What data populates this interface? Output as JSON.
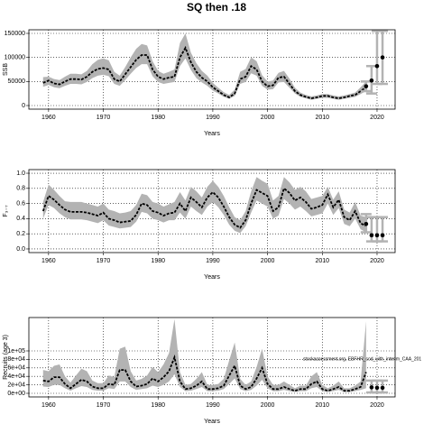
{
  "title": "SQ then .18",
  "chart_data": [
    {
      "type": "band-line",
      "ylabel": "SSB",
      "xlabel": "Years",
      "color": "#000000",
      "band_color": "#b3b3b3",
      "grid": true,
      "x": [
        1959,
        1960,
        1961,
        1962,
        1963,
        1964,
        1965,
        1966,
        1967,
        1968,
        1969,
        1970,
        1971,
        1972,
        1973,
        1974,
        1975,
        1976,
        1977,
        1978,
        1979,
        1980,
        1981,
        1982,
        1983,
        1984,
        1985,
        1986,
        1987,
        1988,
        1989,
        1990,
        1991,
        1992,
        1993,
        1994,
        1995,
        1996,
        1997,
        1998,
        1999,
        2000,
        2001,
        2002,
        2003,
        2004,
        2005,
        2006,
        2007,
        2008,
        2009,
        2010,
        2011,
        2012,
        2013,
        2014,
        2015,
        2016,
        2017,
        2018
      ],
      "values": [
        47000,
        52000,
        46000,
        44000,
        50000,
        55000,
        55000,
        54000,
        60000,
        70000,
        76000,
        78000,
        75000,
        55000,
        50000,
        65000,
        80000,
        95000,
        105000,
        105000,
        75000,
        60000,
        55000,
        58000,
        60000,
        100000,
        120000,
        90000,
        70000,
        58000,
        50000,
        38000,
        30000,
        22000,
        17000,
        25000,
        55000,
        60000,
        82000,
        75000,
        50000,
        40000,
        42000,
        58000,
        60000,
        45000,
        30000,
        22000,
        18000,
        15000,
        17000,
        20000,
        20000,
        17000,
        15000,
        17000,
        20000,
        22000,
        30000,
        38000
      ],
      "upper": [
        59000,
        60000,
        55000,
        53000,
        60000,
        66000,
        66000,
        65000,
        72000,
        86000,
        95000,
        98000,
        94000,
        70000,
        62000,
        80000,
        100000,
        118000,
        128000,
        125000,
        92000,
        72000,
        66000,
        70000,
        75000,
        130000,
        150000,
        110000,
        88000,
        72000,
        62000,
        47000,
        37000,
        28000,
        22000,
        33000,
        70000,
        76000,
        100000,
        92000,
        63000,
        50000,
        52000,
        68000,
        72000,
        56000,
        37000,
        27000,
        22000,
        19000,
        21000,
        24000,
        24000,
        21000,
        19000,
        21000,
        24000,
        27000,
        38000,
        50000
      ],
      "lower": [
        39000,
        43000,
        38000,
        36000,
        41000,
        45000,
        45000,
        44000,
        49000,
        57000,
        62000,
        64000,
        61000,
        45000,
        41000,
        53000,
        66000,
        78000,
        86000,
        86000,
        61000,
        49000,
        45000,
        47000,
        49000,
        82000,
        98000,
        74000,
        57000,
        48000,
        41000,
        31000,
        25000,
        18000,
        14000,
        20000,
        45000,
        49000,
        67000,
        62000,
        41000,
        33000,
        34000,
        48000,
        49000,
        37000,
        25000,
        18000,
        15000,
        12000,
        14000,
        16000,
        16000,
        14000,
        12000,
        14000,
        16000,
        18000,
        24000,
        30000
      ],
      "projection": {
        "x": [
          2018,
          2019,
          2020,
          2021
        ],
        "values": [
          40000,
          52000,
          82000,
          100000
        ],
        "lower": [
          30000,
          25000,
          45000,
          45000
        ],
        "upper": [
          50000,
          82000,
          155000,
          155000
        ]
      },
      "xlim": [
        1956.4,
        2023.3
      ],
      "xticks": [
        1960,
        1970,
        1980,
        1990,
        2000,
        2010,
        2020
      ],
      "ylim": [
        -7500,
        157500
      ],
      "yticks": [
        0,
        50000,
        100000,
        150000
      ]
    },
    {
      "type": "band-line",
      "ylabel": "F₃₋₇",
      "xlabel": "Years",
      "color": "#000000",
      "band_color": "#b3b3b3",
      "grid": true,
      "x": [
        1959,
        1960,
        1961,
        1962,
        1963,
        1964,
        1965,
        1966,
        1967,
        1968,
        1969,
        1970,
        1971,
        1972,
        1973,
        1974,
        1975,
        1976,
        1977,
        1978,
        1979,
        1980,
        1981,
        1982,
        1983,
        1984,
        1985,
        1986,
        1987,
        1988,
        1989,
        1990,
        1991,
        1992,
        1993,
        1994,
        1995,
        1996,
        1997,
        1998,
        1999,
        2000,
        2001,
        2002,
        2003,
        2004,
        2005,
        2006,
        2007,
        2008,
        2009,
        2010,
        2011,
        2012,
        2013,
        2014,
        2015,
        2016,
        2017,
        2018
      ],
      "values": [
        0.5,
        0.7,
        0.65,
        0.58,
        0.52,
        0.49,
        0.49,
        0.49,
        0.48,
        0.46,
        0.44,
        0.48,
        0.4,
        0.38,
        0.35,
        0.36,
        0.37,
        0.45,
        0.6,
        0.58,
        0.5,
        0.48,
        0.44,
        0.47,
        0.48,
        0.6,
        0.5,
        0.68,
        0.62,
        0.55,
        0.68,
        0.75,
        0.68,
        0.56,
        0.42,
        0.32,
        0.28,
        0.38,
        0.6,
        0.78,
        0.74,
        0.7,
        0.5,
        0.55,
        0.8,
        0.74,
        0.64,
        0.68,
        0.62,
        0.53,
        0.55,
        0.58,
        0.72,
        0.55,
        0.65,
        0.42,
        0.38,
        0.5,
        0.34,
        0.3
      ],
      "upper": [
        0.62,
        0.85,
        0.78,
        0.7,
        0.63,
        0.62,
        0.62,
        0.62,
        0.6,
        0.58,
        0.56,
        0.6,
        0.52,
        0.5,
        0.47,
        0.48,
        0.5,
        0.58,
        0.73,
        0.71,
        0.62,
        0.6,
        0.56,
        0.59,
        0.62,
        0.75,
        0.64,
        0.82,
        0.76,
        0.68,
        0.82,
        0.9,
        0.82,
        0.7,
        0.55,
        0.42,
        0.38,
        0.5,
        0.76,
        0.95,
        0.9,
        0.86,
        0.64,
        0.7,
        0.95,
        0.88,
        0.78,
        0.82,
        0.76,
        0.66,
        0.68,
        0.7,
        0.82,
        0.65,
        0.76,
        0.52,
        0.48,
        0.62,
        0.44,
        0.42
      ],
      "lower": [
        0.4,
        0.58,
        0.54,
        0.47,
        0.42,
        0.39,
        0.39,
        0.39,
        0.38,
        0.36,
        0.34,
        0.38,
        0.31,
        0.29,
        0.27,
        0.28,
        0.29,
        0.36,
        0.49,
        0.47,
        0.4,
        0.38,
        0.35,
        0.38,
        0.38,
        0.48,
        0.4,
        0.56,
        0.5,
        0.45,
        0.56,
        0.62,
        0.55,
        0.45,
        0.32,
        0.24,
        0.21,
        0.3,
        0.48,
        0.64,
        0.6,
        0.56,
        0.4,
        0.44,
        0.66,
        0.6,
        0.52,
        0.56,
        0.5,
        0.43,
        0.45,
        0.47,
        0.6,
        0.45,
        0.54,
        0.33,
        0.3,
        0.4,
        0.26,
        0.22
      ],
      "projection": {
        "x": [
          2018,
          2019,
          2020,
          2021
        ],
        "values": [
          0.33,
          0.18,
          0.18,
          0.18
        ],
        "lower": [
          0.22,
          0.1,
          0.1,
          0.1
        ],
        "upper": [
          0.46,
          0.42,
          0.42,
          0.42
        ]
      },
      "xlim": [
        1956.4,
        2023.3
      ],
      "xticks": [
        1960,
        1970,
        1980,
        1990,
        2000,
        2010,
        2020
      ],
      "ylim": [
        -0.048,
        1.048
      ],
      "yticks": [
        {
          "value": 0,
          "label": "0.0"
        },
        0.2,
        0.4,
        0.6,
        0.8,
        {
          "value": 1,
          "label": "1.0"
        }
      ]
    },
    {
      "type": "band-line",
      "ylabel": "Recruits (age 3)",
      "xlabel": "Years",
      "color": "#000000",
      "band_color": "#b3b3b3",
      "grid": true,
      "annotation": "stockassessment.org, EBFHR_cod_with_interim_CAA_201",
      "x": [
        1959,
        1960,
        1961,
        1962,
        1963,
        1964,
        1965,
        1966,
        1967,
        1968,
        1969,
        1970,
        1971,
        1972,
        1973,
        1974,
        1975,
        1976,
        1977,
        1978,
        1979,
        1980,
        1981,
        1982,
        1983,
        1984,
        1985,
        1986,
        1987,
        1988,
        1989,
        1990,
        1991,
        1992,
        1993,
        1994,
        1995,
        1996,
        1997,
        1998,
        1999,
        2000,
        2001,
        2002,
        2003,
        2004,
        2005,
        2006,
        2007,
        2008,
        2009,
        2010,
        2011,
        2012,
        2013,
        2014,
        2015,
        2016,
        2017,
        2018
      ],
      "values": [
        30000,
        28000,
        38000,
        38000,
        22000,
        12000,
        22000,
        32000,
        28000,
        16000,
        12000,
        12000,
        22000,
        20000,
        55000,
        55000,
        28000,
        16000,
        18000,
        22000,
        35000,
        28000,
        38000,
        52000,
        85000,
        28000,
        10000,
        12000,
        18000,
        28000,
        10000,
        10000,
        12000,
        18000,
        42000,
        65000,
        18000,
        10000,
        15000,
        35000,
        60000,
        22000,
        10000,
        10000,
        15000,
        10000,
        6000,
        10000,
        10000,
        22000,
        28000,
        10000,
        6000,
        10000,
        15000,
        6000,
        6000,
        10000,
        15000,
        50000
      ],
      "upper": [
        55000,
        52000,
        65000,
        68000,
        40000,
        25000,
        42000,
        58000,
        52000,
        30000,
        24000,
        24000,
        42000,
        38000,
        105000,
        110000,
        52000,
        30000,
        34000,
        42000,
        62000,
        50000,
        68000,
        95000,
        175000,
        50000,
        20000,
        22000,
        34000,
        50000,
        20000,
        20000,
        22000,
        34000,
        78000,
        120000,
        34000,
        20000,
        28000,
        62000,
        105000,
        40000,
        20000,
        20000,
        28000,
        20000,
        12000,
        18000,
        18000,
        40000,
        50000,
        20000,
        12000,
        18000,
        28000,
        12000,
        12000,
        18000,
        28000,
        170000
      ],
      "lower": [
        16000,
        15000,
        20000,
        20000,
        12000,
        6000,
        12000,
        17000,
        15000,
        8000,
        6000,
        6000,
        12000,
        10000,
        28000,
        28000,
        15000,
        8000,
        10000,
        12000,
        18000,
        15000,
        20000,
        28000,
        45000,
        15000,
        5000,
        6000,
        10000,
        15000,
        5000,
        5000,
        6000,
        10000,
        22000,
        35000,
        10000,
        5000,
        8000,
        18000,
        32000,
        12000,
        5000,
        5000,
        8000,
        5000,
        3000,
        5000,
        5000,
        12000,
        15000,
        5000,
        3000,
        5000,
        8000,
        3000,
        3000,
        5000,
        8000,
        12000
      ],
      "projection": {
        "x": [
          2019,
          2020,
          2021
        ],
        "values": [
          14000,
          13000,
          13000
        ],
        "lower": [
          2000,
          2000,
          2000
        ],
        "upper": [
          30000,
          30000,
          30000
        ]
      },
      "xlim": [
        1956.4,
        2023.3
      ],
      "xticks": [
        1960,
        1970,
        1980,
        1990,
        2000,
        2010,
        2020
      ],
      "ylim": [
        -8500,
        178700
      ],
      "yticks": [
        {
          "value": 0,
          "label": "0e+00"
        },
        {
          "value": 20000,
          "label": "2e+04"
        },
        {
          "value": 40000,
          "label": "4e+04"
        },
        {
          "value": 60000,
          "label": "6e+04"
        },
        {
          "value": 80000,
          "label": "8e+04"
        },
        {
          "value": 100000,
          "label": "1e+05"
        }
      ]
    }
  ]
}
